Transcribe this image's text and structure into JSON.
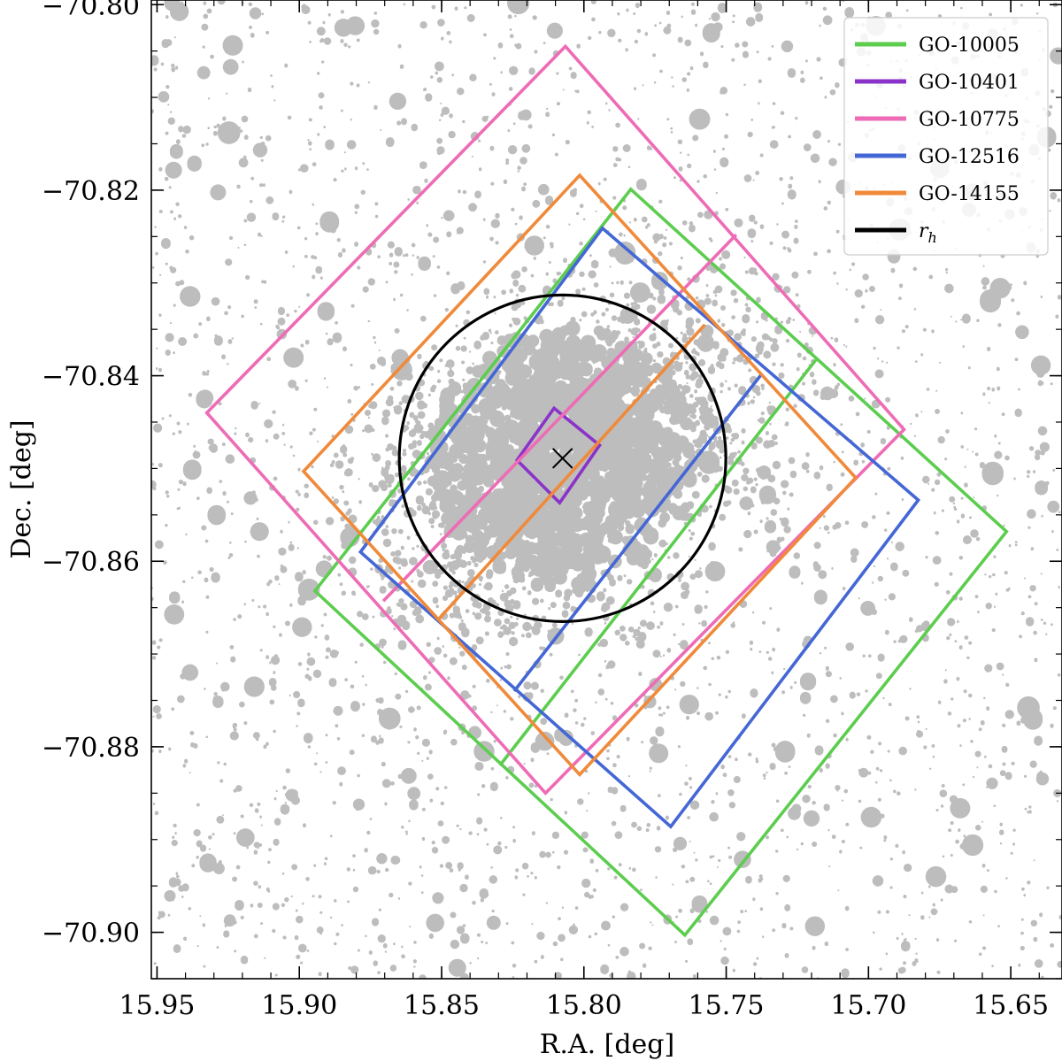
{
  "chart_data": {
    "type": "scatter",
    "title": "",
    "xlabel": "R.A. [deg]",
    "ylabel": "Dec. [deg]",
    "xlim": [
      15.952,
      15.632
    ],
    "ylim": [
      -70.905,
      -70.7995
    ],
    "x_inverted": true,
    "grid": false,
    "xticks": [
      15.95,
      15.9,
      15.85,
      15.8,
      15.75,
      15.7,
      15.65
    ],
    "xtick_labels": [
      "15.95",
      "15.90",
      "15.85",
      "15.80",
      "15.75",
      "15.70",
      "15.65"
    ],
    "yticks": [
      -70.8,
      -70.82,
      -70.84,
      -70.86,
      -70.88,
      -70.9
    ],
    "ytick_labels": [
      "−70.80",
      "−70.82",
      "−70.84",
      "−70.86",
      "−70.88",
      "−70.90"
    ],
    "legend_position": "top-right",
    "center": {
      "ra": 15.8075,
      "dec": -70.8489,
      "marker": "x"
    },
    "half_light_radius": {
      "label": "r_h",
      "radius_deg_dec": 0.0176,
      "color": "#000000"
    },
    "stars": {
      "color": "#bdbdbd",
      "description_count": 2600
    },
    "series": [
      {
        "name": "GO-10005",
        "color": "#5ccd4f",
        "polygons": [
          [
            [
              15.7835,
              -70.8199
            ],
            [
              15.6515,
              -70.8568
            ],
            [
              15.7645,
              -70.9003
            ],
            [
              15.8945,
              -70.8632
            ]
          ],
          [
            [
              15.7185,
              -70.8383
            ],
            [
              15.8295,
              -70.882
            ]
          ]
        ]
      },
      {
        "name": "GO-10401",
        "color": "#8b33c9",
        "polygons": [
          [
            [
              15.8105,
              -70.8435
            ],
            [
              15.7945,
              -70.8475
            ],
            [
              15.8085,
              -70.8537
            ],
            [
              15.8235,
              -70.8491
            ]
          ]
        ]
      },
      {
        "name": "GO-10775",
        "color": "#ee6bb5",
        "polygons": [
          [
            [
              15.8065,
              -70.8045
            ],
            [
              15.6875,
              -70.8458
            ],
            [
              15.8135,
              -70.885
            ],
            [
              15.9325,
              -70.844
            ]
          ],
          [
            [
              15.7465,
              -70.8248
            ],
            [
              15.8705,
              -70.8643
            ]
          ]
        ]
      },
      {
        "name": "GO-12516",
        "color": "#4467d5",
        "polygons": [
          [
            [
              15.7935,
              -70.8241
            ],
            [
              15.6825,
              -70.8534
            ],
            [
              15.7695,
              -70.8886
            ],
            [
              15.8785,
              -70.859
            ]
          ],
          [
            [
              15.7375,
              -70.8398
            ],
            [
              15.8245,
              -70.874
            ]
          ]
        ]
      },
      {
        "name": "GO-14155",
        "color": "#f08a3a",
        "polygons": [
          [
            [
              15.8015,
              -70.8184
            ],
            [
              15.7045,
              -70.851
            ],
            [
              15.8015,
              -70.883
            ],
            [
              15.8985,
              -70.8503
            ]
          ],
          [
            [
              15.7575,
              -70.8345
            ],
            [
              15.8515,
              -70.8664
            ]
          ]
        ]
      }
    ],
    "legend": [
      {
        "label": "GO-10005",
        "color": "#5ccd4f"
      },
      {
        "label": "GO-10401",
        "color": "#8b33c9"
      },
      {
        "label": "GO-10775",
        "color": "#ee6bb5"
      },
      {
        "label": "GO-12516",
        "color": "#4467d5"
      },
      {
        "label": "GO-14155",
        "color": "#f08a3a"
      },
      {
        "label": "r",
        "subscript": "h",
        "color": "#000000"
      }
    ]
  }
}
